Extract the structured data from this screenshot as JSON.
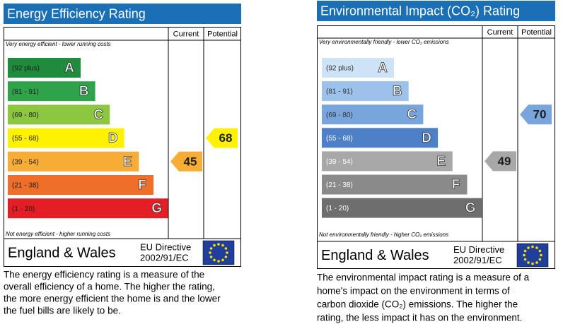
{
  "panels": [
    {
      "title": "Energy Efficiency Rating",
      "headers": [
        "Current",
        "Potential"
      ],
      "top_note": "Very energy efficient - lower running costs",
      "bottom_note": "Not energy efficient - higher running costs",
      "bands": [
        {
          "range": "(92 plus)",
          "letter": "A",
          "color": "#1e8c3c"
        },
        {
          "range": "(81 - 91)",
          "letter": "B",
          "color": "#2ea34a"
        },
        {
          "range": "(69 - 80)",
          "letter": "C",
          "color": "#8dc63f"
        },
        {
          "range": "(55 - 68)",
          "letter": "D",
          "color": "#fff200"
        },
        {
          "range": "(39 - 54)",
          "letter": "E",
          "color": "#f7ac36"
        },
        {
          "range": "(21 - 38)",
          "letter": "F",
          "color": "#ef6f2a"
        },
        {
          "range": "(1 - 20)",
          "letter": "G",
          "color": "#e31e24"
        }
      ],
      "current": 45,
      "potential": 68,
      "footer": {
        "region": "England & Wales",
        "directive": [
          "EU Directive",
          "2002/91/EC"
        ]
      },
      "description": [
        "The energy efficiency rating is a measure of the",
        "overall efficiency of a home. The higher the rating,",
        "the more energy efficient the home is and the lower",
        "the fuel bills are likely to be."
      ]
    },
    {
      "title": "Environmental Impact (CO₂) Rating",
      "headers": [
        "Current",
        "Potential"
      ],
      "top_note": "Very environmentally friendly - lower CO₂ emissions",
      "bottom_note": "Not environmentally friendly - higher CO₂ emissions",
      "bands": [
        {
          "range": "(92 plus)",
          "letter": "A",
          "color": "#cfe3f6"
        },
        {
          "range": "(81 - 91)",
          "letter": "B",
          "color": "#9cc1ea"
        },
        {
          "range": "(69 - 80)",
          "letter": "C",
          "color": "#78a6dc"
        },
        {
          "range": "(55 - 68)",
          "letter": "D",
          "color": "#4d80c6"
        },
        {
          "range": "(39 - 54)",
          "letter": "E",
          "color": "#a8a8a8"
        },
        {
          "range": "(21 - 38)",
          "letter": "F",
          "color": "#8a8a8a"
        },
        {
          "range": "(1 - 20)",
          "letter": "G",
          "color": "#6e6e6e"
        }
      ],
      "current": 49,
      "potential": 70,
      "footer": {
        "region": "England & Wales",
        "directive": [
          "EU Directive",
          "2002/91/EC"
        ]
      },
      "description": [
        "The environmental impact rating is a measure of a",
        "home's impact on the environment in terms of",
        "carbon dioxide (CO₂) emissions. The higher the",
        "rating, the less impact it has on the environment."
      ]
    }
  ]
}
